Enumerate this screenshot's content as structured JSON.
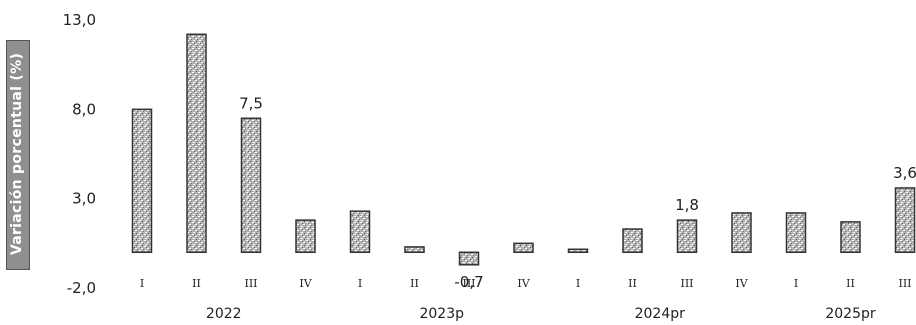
{
  "chart_data": {
    "type": "bar",
    "ylabel": "Variación porcentual (%)",
    "yticks": [
      "13,0",
      "8,0",
      "3,0",
      "-2,0"
    ],
    "ytick_values": [
      13,
      8,
      3,
      -2
    ],
    "ylim": [
      -2,
      13
    ],
    "grid": false,
    "legend": "none",
    "categories": [
      "I",
      "II",
      "III",
      "IV",
      "I",
      "II",
      "III",
      "IV",
      "I",
      "II",
      "III",
      "IV",
      "I",
      "II",
      "III"
    ],
    "years": [
      {
        "label": "2022",
        "start": 0,
        "end": 3
      },
      {
        "label": "2023p",
        "start": 4,
        "end": 7
      },
      {
        "label": "2024pr",
        "start": 8,
        "end": 11
      },
      {
        "label": "2025pr",
        "start": 12,
        "end": 14
      }
    ],
    "values": [
      8.0,
      12.2,
      7.5,
      1.8,
      2.3,
      0.3,
      -0.7,
      0.5,
      0.1,
      1.3,
      1.8,
      2.2,
      2.2,
      1.7,
      3.6
    ],
    "data_labels": [
      {
        "index": 2,
        "text": "7,5"
      },
      {
        "index": 6,
        "text": "-0,7"
      },
      {
        "index": 10,
        "text": "1,8"
      },
      {
        "index": 14,
        "text": "3,6"
      }
    ],
    "bar_color": "#a9a9a9",
    "bar_border": "#333333"
  }
}
